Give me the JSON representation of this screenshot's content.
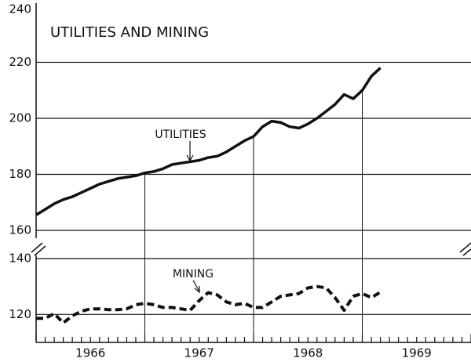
{
  "chart_data": [
    {
      "type": "line",
      "title": "UTILITIES AND MINING",
      "x": [
        1966,
        1966.083,
        1966.167,
        1966.25,
        1966.333,
        1966.417,
        1966.5,
        1966.583,
        1966.667,
        1966.75,
        1966.833,
        1966.917,
        1967,
        1967.083,
        1967.167,
        1967.25,
        1967.333,
        1967.417,
        1967.5,
        1967.583,
        1967.667,
        1967.75,
        1967.833,
        1967.917,
        1968,
        1968.083,
        1968.167,
        1968.25,
        1968.333,
        1968.417,
        1968.5,
        1968.583,
        1968.667,
        1968.75,
        1968.833,
        1968.917,
        1969,
        1969.083,
        1969.167
      ],
      "series": [
        {
          "name": "UTILITIES",
          "color": "#111111",
          "values": [
            165.5,
            167.5,
            169.5,
            171,
            172,
            173.5,
            175,
            176.5,
            177.5,
            178.5,
            179,
            179.5,
            180.5,
            181,
            182,
            183.5,
            184,
            184.5,
            185,
            186,
            186.5,
            188,
            190,
            192,
            193.5,
            197,
            199,
            198.5,
            197,
            196.5,
            198,
            200,
            202.5,
            205,
            208.5,
            207,
            210,
            215,
            218
          ]
        }
      ],
      "xlim": [
        1966,
        1970
      ],
      "ylim": [
        160,
        240
      ],
      "yticks": [
        160,
        180,
        200,
        220,
        240
      ],
      "grid": true
    },
    {
      "type": "line",
      "x": [
        1966,
        1966.083,
        1966.167,
        1966.25,
        1966.333,
        1966.417,
        1966.5,
        1966.583,
        1966.667,
        1966.75,
        1966.833,
        1966.917,
        1967,
        1967.083,
        1967.167,
        1967.25,
        1967.333,
        1967.417,
        1967.5,
        1967.583,
        1967.667,
        1967.75,
        1967.833,
        1967.917,
        1968,
        1968.083,
        1968.167,
        1968.25,
        1968.333,
        1968.417,
        1968.5,
        1968.583,
        1968.667,
        1968.75,
        1968.833,
        1968.917,
        1969,
        1969.083,
        1969.167
      ],
      "series": [
        {
          "name": "MINING",
          "color": "#111111",
          "dashed": true,
          "values": [
            118.6,
            118.6,
            120.3,
            117,
            119.5,
            121.2,
            122,
            122,
            121.7,
            121.7,
            122,
            123.5,
            124,
            123.5,
            122.5,
            122.5,
            122,
            121.5,
            125,
            127.8,
            127,
            124.5,
            123.5,
            124,
            122.5,
            122.5,
            124.5,
            126.5,
            127,
            127.5,
            129.5,
            130,
            129.5,
            126,
            121.5,
            126.5,
            127.5,
            126,
            128
          ]
        }
      ],
      "xlim": [
        1966,
        1970
      ],
      "ylim": [
        110,
        140
      ],
      "yticks": [
        120,
        140
      ],
      "grid": true,
      "xticks": [
        {
          "value": 1966.5,
          "label": "1966"
        },
        {
          "value": 1967.5,
          "label": "1967"
        },
        {
          "value": 1968.5,
          "label": "1968"
        },
        {
          "value": 1969.5,
          "label": "1969"
        }
      ]
    }
  ]
}
